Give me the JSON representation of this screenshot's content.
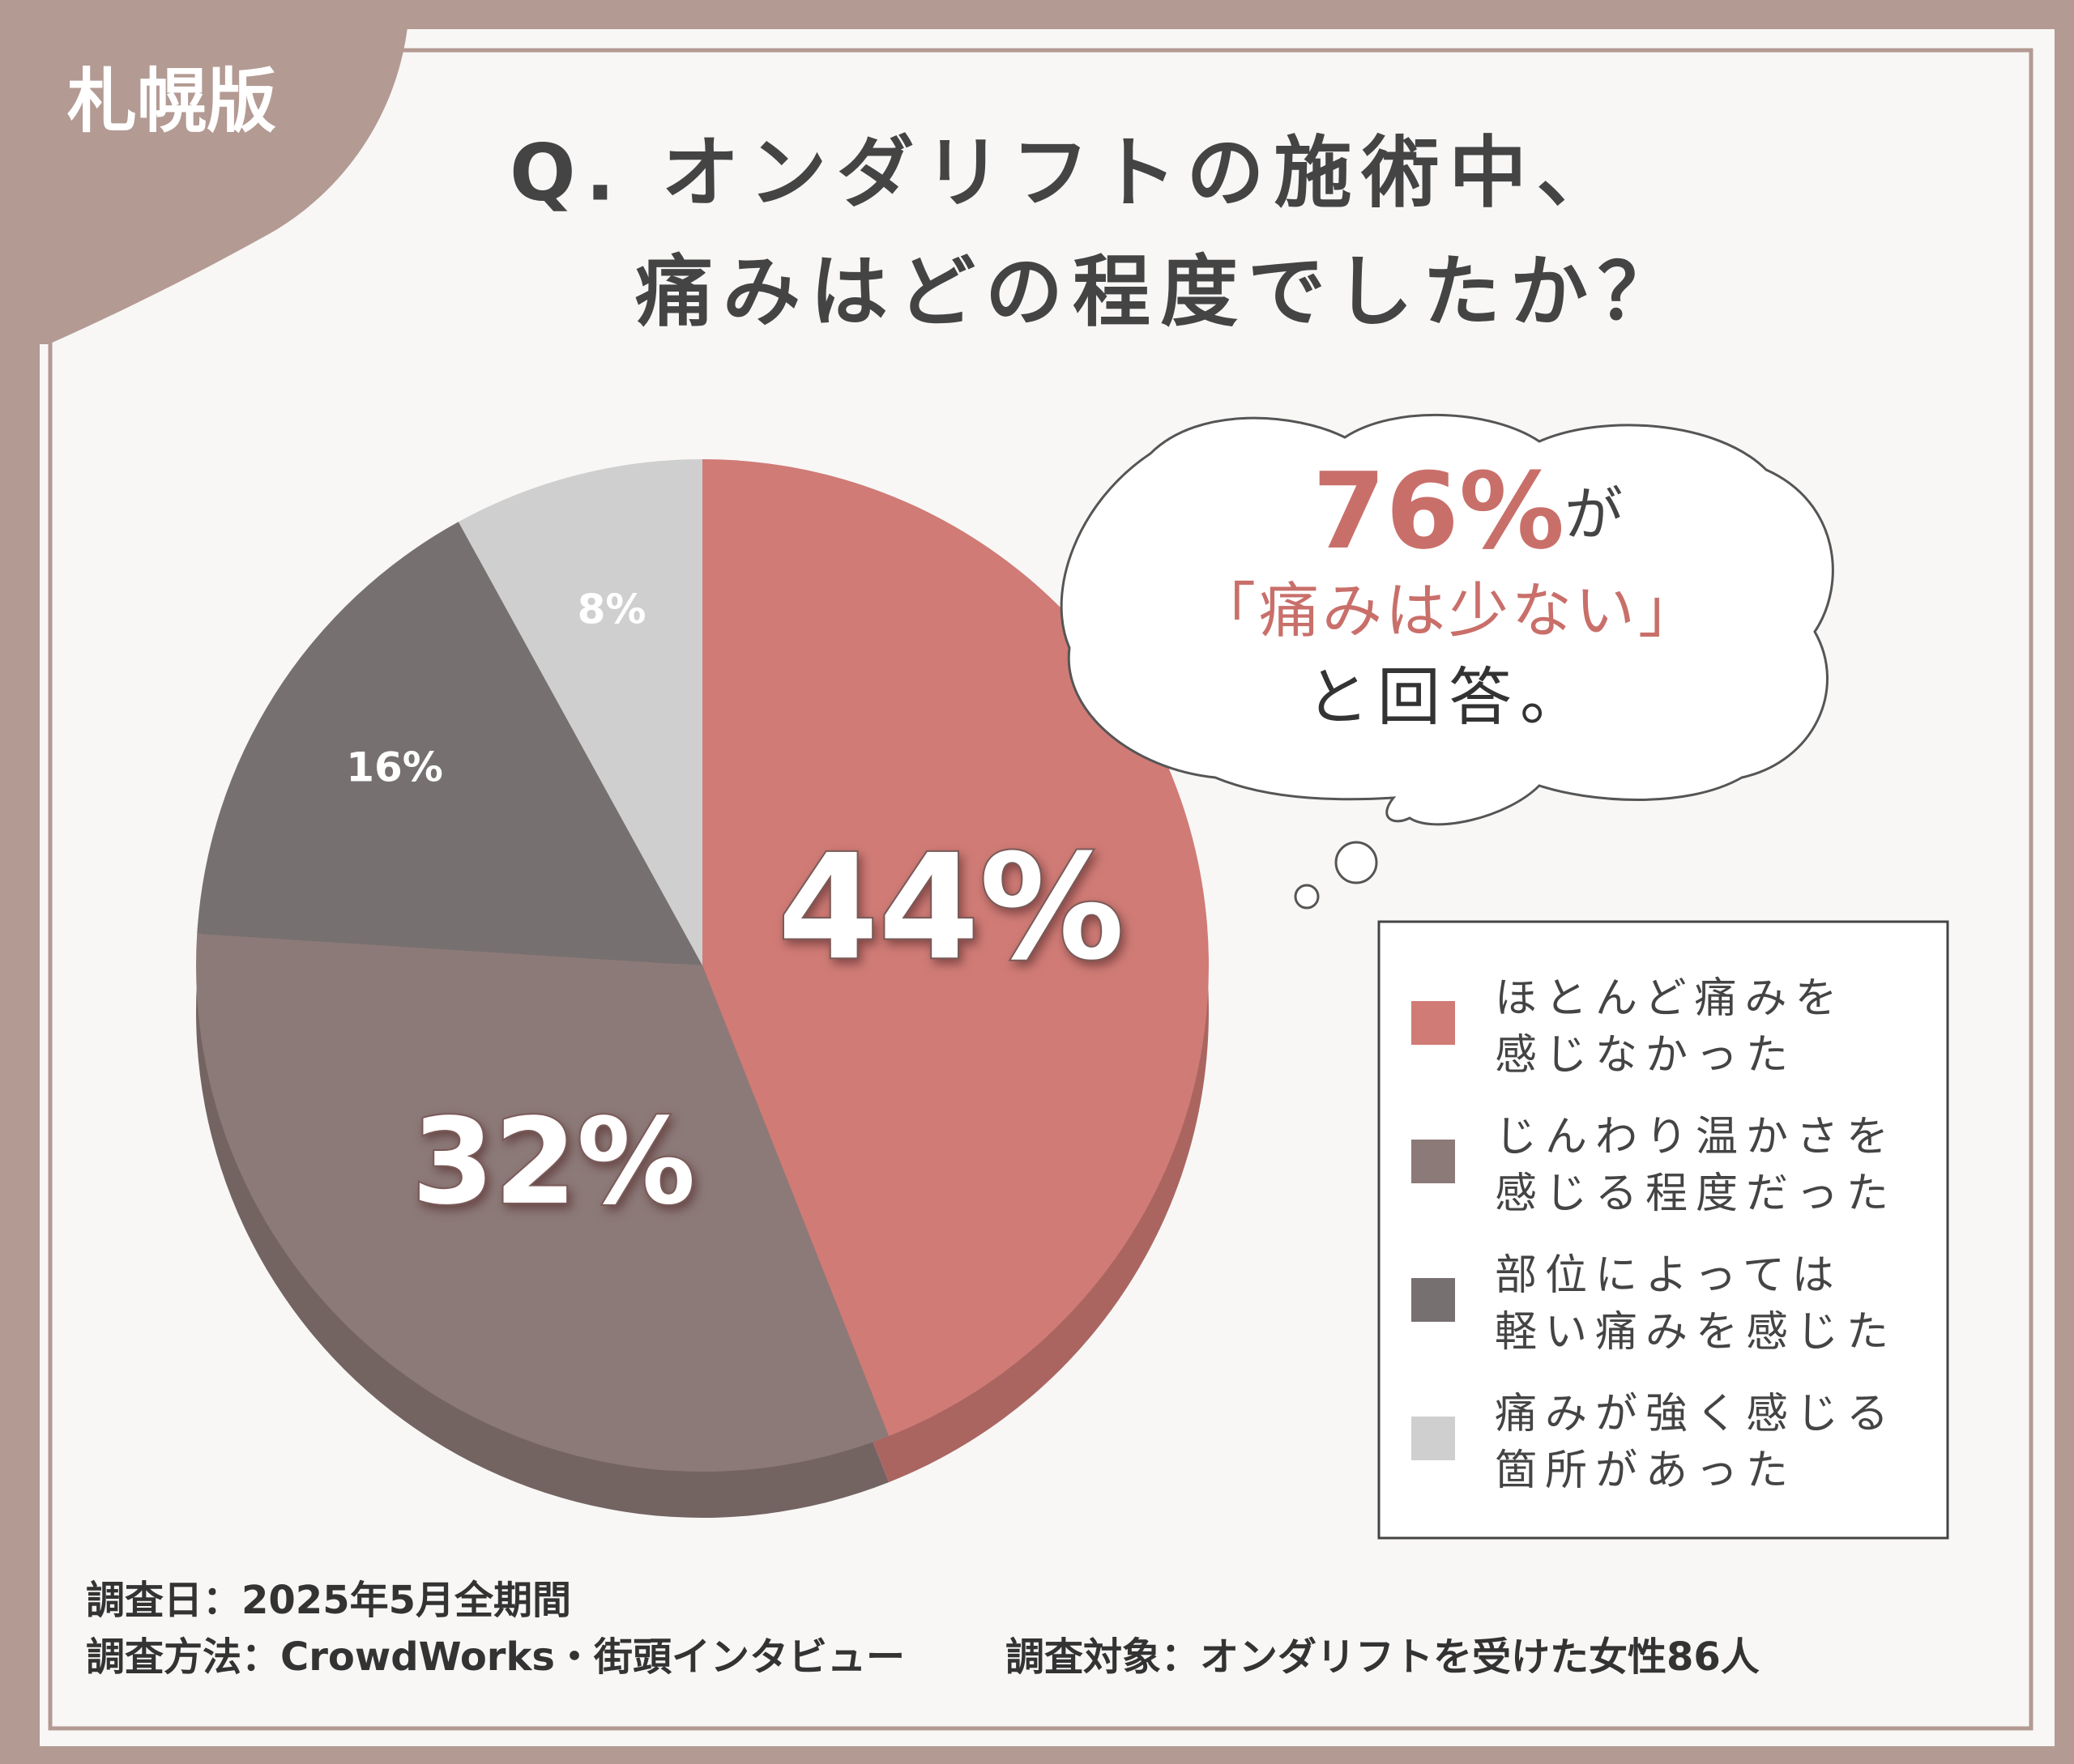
{
  "badge": "札幌版",
  "chart_data": {
    "type": "pie",
    "title": [
      "Q. オンダリフトの施術中、",
      "痛みはどの程度でしたか？"
    ],
    "categories": [
      "ほとんど痛みを\n感じなかった",
      "じんわり温かさを\n感じる程度だった",
      "部位によっては\n軽い痛みを感じた",
      "痛みが強く感じる\n箇所があった"
    ],
    "values": [
      44,
      32,
      16,
      8
    ],
    "value_labels": [
      "44%",
      "32%",
      "16%",
      "8%"
    ],
    "colors": [
      "#d07b76",
      "#8c7a78",
      "#767170",
      "#cfcfcf"
    ]
  },
  "callout": {
    "highlight": "76%",
    "highlight_suffix": "が",
    "quote": "「痛みは少ない」",
    "tail": "と回答。"
  },
  "footer": {
    "date": "調査日：2025年5月全期間",
    "method": "調査方法：CrowdWorks・街頭インタビュー",
    "target": "調査対象：オンダリフトを受けた女性86人"
  }
}
